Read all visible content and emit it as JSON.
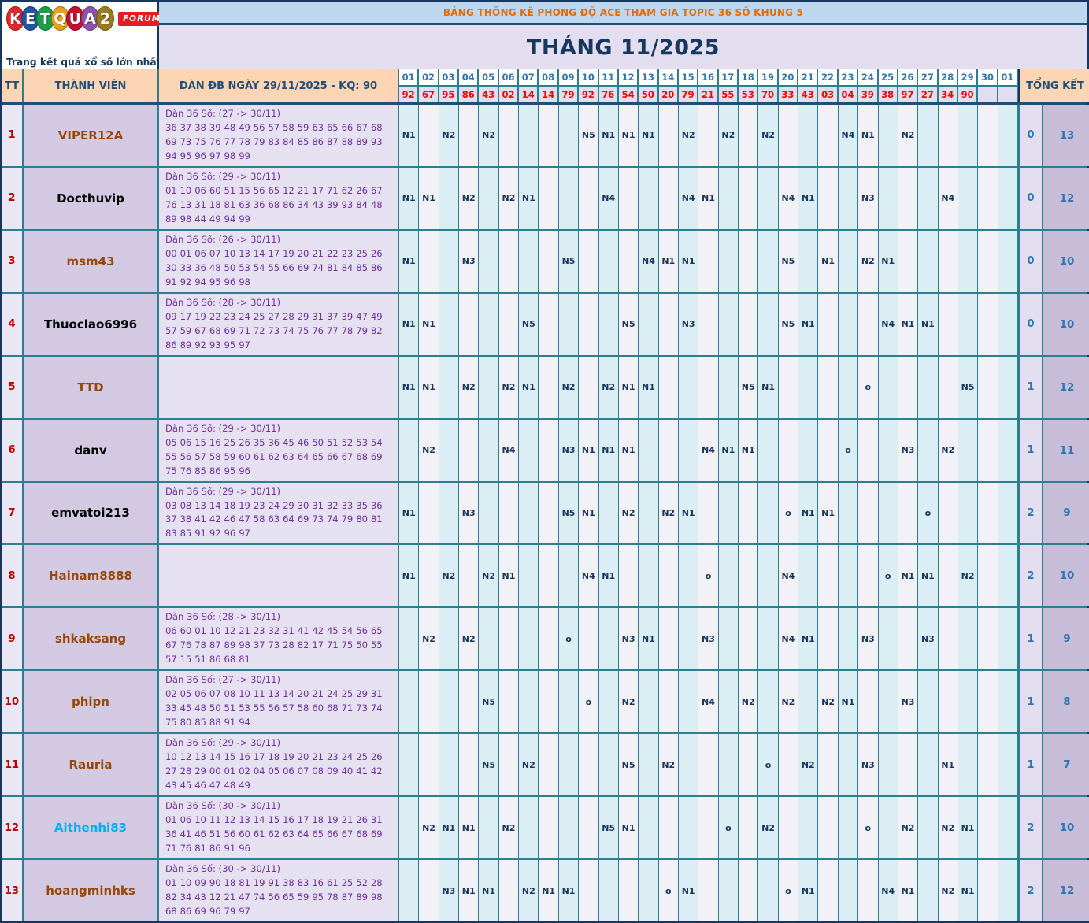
{
  "logo": {
    "letters": [
      {
        "ch": "K",
        "color": "#e3262c"
      },
      {
        "ch": "E",
        "color": "#2155a3"
      },
      {
        "ch": "T",
        "color": "#1e9e48"
      },
      {
        "ch": "Q",
        "color": "#e9a11b"
      },
      {
        "ch": "U",
        "color": "#c8102e"
      },
      {
        "ch": "A",
        "color": "#8d53a8"
      },
      {
        "ch": "2",
        "color": "#9a7b1e"
      }
    ],
    "forum": "FORUM",
    "tagline": "Trang kết quả xổ số lớn nhất Việt Nam"
  },
  "banner": "BẢNG THỐNG KÊ PHONG ĐỘ ACE THAM GIA TOPIC 36 SỐ KHUNG 5",
  "title": "THÁNG 11/2025",
  "colors": {
    "banner_bg": "#bdd7ee",
    "banner_text": "#e26b0a",
    "title_bg": "#e2def0",
    "title_text": "#17375e",
    "header_bg": "#fcd5b4",
    "day_text": "#2e75b6",
    "kq_text": "#ff0000",
    "grid_blue": "#daeef4",
    "grid_grey": "#f2f1f5",
    "border_teal": "#2b7f91",
    "member_bg": "#d3c9e2",
    "dan_text": "#7030a0",
    "tt_text": "#c00000",
    "summary_bg": "#c7bdd9",
    "name_brown": "#974706",
    "name_cyan": "#00b0f0"
  },
  "table": {
    "headers": {
      "tt": "TT",
      "member": "THÀNH VIÊN",
      "dan": "DÀN ĐB NGÀY 29/11/2025 - KQ: 90",
      "summary": "TỔNG KẾT"
    },
    "days": [
      "01",
      "02",
      "03",
      "04",
      "05",
      "06",
      "07",
      "08",
      "09",
      "10",
      "11",
      "12",
      "13",
      "14",
      "15",
      "16",
      "17",
      "18",
      "19",
      "20",
      "21",
      "22",
      "23",
      "24",
      "25",
      "26",
      "27",
      "28",
      "29",
      "30",
      "01"
    ],
    "kq": [
      "92",
      "67",
      "95",
      "86",
      "43",
      "02",
      "14",
      "14",
      "79",
      "92",
      "76",
      "54",
      "50",
      "20",
      "79",
      "21",
      "55",
      "53",
      "70",
      "33",
      "43",
      "03",
      "04",
      "39",
      "38",
      "97",
      "27",
      "34",
      "90",
      "",
      ""
    ],
    "rows": [
      {
        "tt": "1",
        "name": "VIPER12A",
        "name_color": "#974706",
        "dan_label": "Dàn 36 Số: (27 -> 30/11)",
        "dan_numbers": "36 37 38 39 48 49 56 57 58 59 63 65 66 67 68 69 73 75 76 77 78 79 83 84 85 86 87 88 89 93 94 95 96 97 98 99",
        "cells": [
          "N1",
          "",
          "N2",
          "",
          "N2",
          "",
          "",
          "",
          "",
          "N5",
          "N1",
          "N1",
          "N1",
          "",
          "N2",
          "",
          "N2",
          "",
          "N2",
          "",
          "",
          "",
          "N4",
          "N1",
          "",
          "N2",
          "",
          "",
          "",
          "",
          ""
        ],
        "summary": [
          "0",
          "13"
        ]
      },
      {
        "tt": "2",
        "name": "Docthuvip",
        "name_color": "#000000",
        "dan_label": "Dàn 36 Số: (29 -> 30/11)",
        "dan_numbers": "01 10 06 60 51 15 56 65 12 21 17 71 62 26 67 76 13 31 18 81 63 36 68 86 34 43 39 93 84 48 89 98 44 49 94 99",
        "cells": [
          "N1",
          "N1",
          "",
          "N2",
          "",
          "N2",
          "N1",
          "",
          "",
          "",
          "N4",
          "",
          "",
          "",
          "N4",
          "N1",
          "",
          "",
          "",
          "N4",
          "N1",
          "",
          "",
          "N3",
          "",
          "",
          "",
          "N4",
          "",
          "",
          ""
        ],
        "summary": [
          "0",
          "12"
        ]
      },
      {
        "tt": "3",
        "name": "msm43",
        "name_color": "#974706",
        "dan_label": "Dàn 36 Số: (26 -> 30/11)",
        "dan_numbers": "00 01 06 07 10 13 14 17 19 20 21 22 23 25 26 30 33 36 48 50 53 54 55 66 69 74 81 84 85 86 91 92 94 95 96 98",
        "cells": [
          "N1",
          "",
          "",
          "N3",
          "",
          "",
          "",
          "",
          "N5",
          "",
          "",
          "",
          "N4",
          "N1",
          "N1",
          "",
          "",
          "",
          "",
          "N5",
          "",
          "N1",
          "",
          "N2",
          "N1",
          "",
          "",
          "",
          "",
          "",
          ""
        ],
        "summary": [
          "0",
          "10"
        ]
      },
      {
        "tt": "4",
        "name": "Thuoclao6996",
        "name_color": "#000000",
        "dan_label": "Dàn 36 Số: (28 -> 30/11)",
        "dan_numbers": "09 17 19 22 23 24 25 27 28 29 31 37 39 47 49 57 59 67 68 69 71 72 73 74 75 76 77 78 79 82 86 89 92 93 95 97",
        "cells": [
          "N1",
          "N1",
          "",
          "",
          "",
          "",
          "N5",
          "",
          "",
          "",
          "",
          "N5",
          "",
          "",
          "N3",
          "",
          "",
          "",
          "",
          "N5",
          "N1",
          "",
          "",
          "",
          "N4",
          "N1",
          "N1",
          "",
          "",
          "",
          ""
        ],
        "summary": [
          "0",
          "10"
        ]
      },
      {
        "tt": "5",
        "name": "TTD",
        "name_color": "#974706",
        "dan_label": "",
        "dan_numbers": "",
        "cells": [
          "N1",
          "N1",
          "",
          "N2",
          "",
          "N2",
          "N1",
          "",
          "N2",
          "",
          "N2",
          "N1",
          "N1",
          "",
          "",
          "",
          "",
          "N5",
          "N1",
          "",
          "",
          "",
          "",
          "o",
          "",
          "",
          "",
          "",
          "N5",
          "",
          ""
        ],
        "summary": [
          "1",
          "12"
        ]
      },
      {
        "tt": "6",
        "name": "danv",
        "name_color": "#000000",
        "dan_label": "Dàn 36 Số: (29 -> 30/11)",
        "dan_numbers": "05 06 15 16 25 26 35 36 45 46 50 51 52 53 54 55 56 57 58 59 60 61 62 63 64 65 66 67 68 69 75 76 85 86 95 96",
        "cells": [
          "",
          "N2",
          "",
          "",
          "",
          "N4",
          "",
          "",
          "N3",
          "N1",
          "N1",
          "N1",
          "",
          "",
          "",
          "N4",
          "N1",
          "N1",
          "",
          "",
          "",
          "",
          "o",
          "",
          "",
          "N3",
          "",
          "N2",
          "",
          "",
          ""
        ],
        "summary": [
          "1",
          "11"
        ]
      },
      {
        "tt": "7",
        "name": "emvatoi213",
        "name_color": "#000000",
        "dan_label": "Dàn 36 Số: (29 -> 30/11)",
        "dan_numbers": "03 08 13 14 18 19 23 24 29 30 31 32 33 35 36 37 38 41 42 46 47 58 63 64 69 73 74 79 80 81 83 85 91 92 96 97",
        "cells": [
          "N1",
          "",
          "",
          "N3",
          "",
          "",
          "",
          "",
          "N5",
          "N1",
          "",
          "N2",
          "",
          "N2",
          "N1",
          "",
          "",
          "",
          "",
          "o",
          "N1",
          "N1",
          "",
          "",
          "",
          "",
          "o",
          "",
          "",
          "",
          ""
        ],
        "summary": [
          "2",
          "9"
        ]
      },
      {
        "tt": "8",
        "name": "Hainam8888",
        "name_color": "#974706",
        "dan_label": "",
        "dan_numbers": "",
        "cells": [
          "N1",
          "",
          "N2",
          "",
          "N2",
          "N1",
          "",
          "",
          "",
          "N4",
          "N1",
          "",
          "",
          "",
          "",
          "o",
          "",
          "",
          "",
          "N4",
          "",
          "",
          "",
          "",
          "o",
          "N1",
          "N1",
          "",
          "N2",
          "",
          ""
        ],
        "summary": [
          "2",
          "10"
        ]
      },
      {
        "tt": "9",
        "name": "shkaksang",
        "name_color": "#974706",
        "dan_label": "Dàn 36 Số: (28 -> 30/11)",
        "dan_numbers": "06 60 01 10 12 21 23 32 31 41 42 45 54 56 65 67 76 78 87 89 98 37 73 28 82 17 71 75 50 55 57 15 51 86 68 81",
        "cells": [
          "",
          "N2",
          "",
          "N2",
          "",
          "",
          "",
          "",
          "o",
          "",
          "",
          "N3",
          "N1",
          "",
          "",
          "N3",
          "",
          "",
          "",
          "N4",
          "N1",
          "",
          "",
          "N3",
          "",
          "",
          "N3",
          "",
          "",
          "",
          ""
        ],
        "summary": [
          "1",
          "9"
        ]
      },
      {
        "tt": "10",
        "name": "phipn",
        "name_color": "#974706",
        "dan_label": "Dàn 36 Số: (27 -> 30/11)",
        "dan_numbers": "02 05 06 07 08 10 11 13 14 20 21 24 25 29 31 33 45 48 50 51 53 55 56 57 58 60 68 71 73 74 75 80 85 88 91 94",
        "cells": [
          "",
          "",
          "",
          "",
          "N5",
          "",
          "",
          "",
          "",
          "o",
          "",
          "N2",
          "",
          "",
          "",
          "N4",
          "",
          "N2",
          "",
          "N2",
          "",
          "N2",
          "N1",
          "",
          "",
          "N3",
          "",
          "",
          "",
          "",
          ""
        ],
        "summary": [
          "1",
          "8"
        ]
      },
      {
        "tt": "11",
        "name": "Rauria",
        "name_color": "#974706",
        "dan_label": "Dàn 36 Số: (29 -> 30/11)",
        "dan_numbers": "10 12 13 14 15 16 17 18 19 20 21 23 24 25 26 27 28 29 00 01 02 04 05 06 07 08 09 40 41 42 43 45 46 47 48 49",
        "cells": [
          "",
          "",
          "",
          "",
          "N5",
          "",
          "N2",
          "",
          "",
          "",
          "",
          "N5",
          "",
          "N2",
          "",
          "",
          "",
          "",
          "o",
          "",
          "N2",
          "",
          "",
          "N3",
          "",
          "",
          "",
          "N1",
          "",
          "",
          ""
        ],
        "summary": [
          "1",
          "7"
        ]
      },
      {
        "tt": "12",
        "name": "Aithenhi83",
        "name_color": "#00b0f0",
        "dan_label": "Dàn 36 Số: (30 -> 30/11)",
        "dan_numbers": "01 06 10 11 12 13 14 15 16 17 18 19 21 26 31 36 41 46 51 56 60 61 62 63 64 65 66 67 68 69 71 76 81 86 91 96",
        "cells": [
          "",
          "N2",
          "N1",
          "N1",
          "",
          "N2",
          "",
          "",
          "",
          "",
          "N5",
          "N1",
          "",
          "",
          "",
          "",
          "o",
          "",
          "N2",
          "",
          "",
          "",
          "",
          "o",
          "",
          "N2",
          "",
          "N2",
          "N1",
          "",
          ""
        ],
        "summary": [
          "2",
          "10"
        ]
      },
      {
        "tt": "13",
        "name": "hoangminhks",
        "name_color": "#974706",
        "dan_label": "Dàn 36 Số: (30 -> 30/11)",
        "dan_numbers": "01 10 09 90 18 81 19 91 38 83 16 61 25 52 28 82 34 43 12 21 47 74 56 65 59 95 78 87 89 98 68 86 69 96 79 97",
        "cells": [
          "",
          "",
          "N3",
          "N1",
          "N1",
          "",
          "N2",
          "N1",
          "N1",
          "",
          "",
          "",
          "",
          "o",
          "N1",
          "",
          "",
          "",
          "",
          "o",
          "N1",
          "",
          "",
          "",
          "N4",
          "N1",
          "",
          "N2",
          "N1",
          "",
          ""
        ],
        "summary": [
          "2",
          "12"
        ]
      }
    ]
  }
}
